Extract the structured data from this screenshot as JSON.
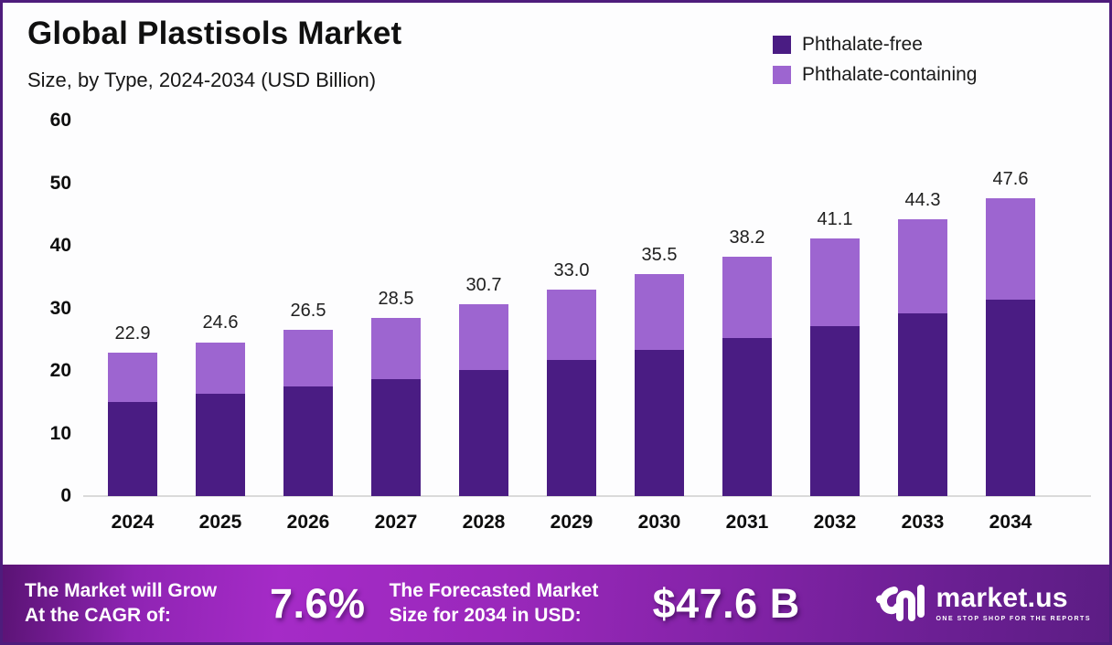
{
  "header": {
    "title": "Global Plastisols Market",
    "subtitle": "Size, by Type, 2024-2034 (USD Billion)"
  },
  "colors": {
    "frame_border": "#4e1c7c",
    "phthalate_free": "#4a1c83",
    "phthalate_containing": "#9d65d0",
    "banner_gradient_start": "#5a1374",
    "banner_gradient_mid": "#a52bc7",
    "banner_gradient_end": "#5c1d84",
    "axis_line": "#dadada"
  },
  "legend": {
    "items": [
      {
        "label": "Phthalate-free",
        "color": "#4a1c83"
      },
      {
        "label": "Phthalate-containing",
        "color": "#9d65d0"
      }
    ]
  },
  "chart_data": {
    "type": "bar",
    "stacked": true,
    "title": "Global Plastisols Market",
    "subtitle": "Size, by Type, 2024-2034 (USD Billion)",
    "unit": "USD Billion",
    "categories": [
      "2024",
      "2025",
      "2026",
      "2027",
      "2028",
      "2029",
      "2030",
      "2031",
      "2032",
      "2033",
      "2034"
    ],
    "series": [
      {
        "name": "Phthalate-free",
        "color": "#4a1c83",
        "values": [
          15.1,
          16.4,
          17.5,
          18.7,
          20.2,
          21.7,
          23.4,
          25.3,
          27.2,
          29.2,
          31.4
        ]
      },
      {
        "name": "Phthalate-containing",
        "color": "#9d65d0",
        "values": [
          7.8,
          8.2,
          9.0,
          9.8,
          10.5,
          11.3,
          12.1,
          12.9,
          13.9,
          15.1,
          16.2
        ]
      }
    ],
    "totals": [
      22.9,
      24.6,
      26.5,
      28.5,
      30.7,
      33.0,
      35.5,
      38.2,
      41.1,
      44.3,
      47.6
    ],
    "total_labels": [
      "22.9",
      "24.6",
      "26.5",
      "28.5",
      "30.7",
      "33.0",
      "35.5",
      "38.2",
      "41.1",
      "44.3",
      "47.6"
    ],
    "ylim": [
      0,
      60
    ],
    "yticks": [
      0,
      10,
      20,
      30,
      40,
      50,
      60
    ],
    "grid": false,
    "legend_position": "top-right"
  },
  "footer": {
    "growth_label_line1": "The Market will Grow",
    "growth_label_line2": "At the CAGR of:",
    "cagr_value": "7.6%",
    "forecast_label_line1": "The Forecasted Market",
    "forecast_label_line2": "Size for 2034 in USD:",
    "forecast_value": "$47.6 B",
    "logo_text": "market.us",
    "logo_tagline": "ONE STOP SHOP FOR THE REPORTS"
  }
}
